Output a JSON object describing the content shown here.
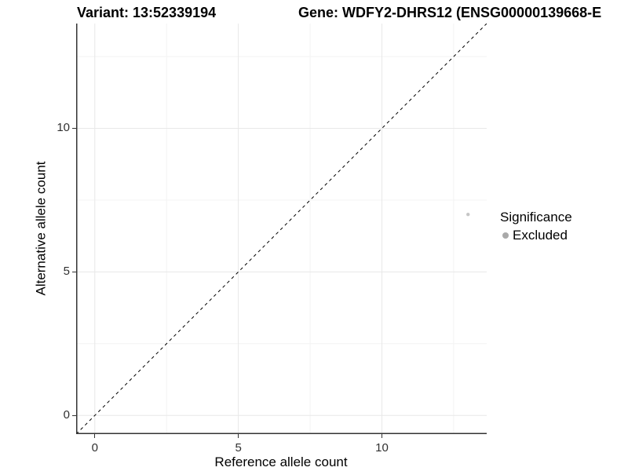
{
  "header": {
    "variant_title": "Variant: 13:52339194",
    "gene_title": "Gene: WDFY2-DHRS12 (ENSG00000139668-E"
  },
  "chart_data": {
    "type": "scatter",
    "xlabel": "Reference allele count",
    "ylabel": "Alternative allele count",
    "xlim": [
      -0.65,
      13.65
    ],
    "ylim": [
      -0.65,
      13.65
    ],
    "x_ticks": [
      0,
      5,
      10
    ],
    "y_ticks": [
      0,
      5,
      10
    ],
    "x_minor_gridlines": [
      2.5,
      7.5,
      12.5
    ],
    "y_minor_gridlines": [
      2.5,
      7.5,
      12.5
    ],
    "grid": "major-and-minor",
    "reference_line": {
      "type": "identity",
      "slope": 1,
      "intercept": 0,
      "style": "dashed",
      "color": "#000000"
    },
    "series": [
      {
        "name": "Excluded",
        "color": "#c6c6c6",
        "point_radius": 2.2,
        "points": [
          {
            "x": 13,
            "y": 7
          }
        ]
      }
    ],
    "legend": {
      "title": "Significance",
      "position": "right",
      "items": [
        {
          "label": "Excluded",
          "color": "#a9a9a9"
        }
      ]
    }
  },
  "colors": {
    "grid_major": "#e8e8e8",
    "grid_minor": "#f3f3f3",
    "axis_line": "#333333",
    "tick_label": "#303030",
    "background": "#ffffff"
  }
}
